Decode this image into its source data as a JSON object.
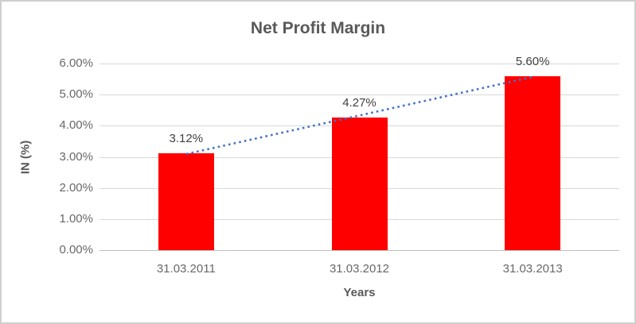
{
  "chart_data": {
    "type": "bar",
    "title": "Net Profit Margin",
    "xlabel": "Years",
    "ylabel": "IN (%)",
    "categories": [
      "31.03.2011",
      "31.03.2012",
      "31.03.2013"
    ],
    "values": [
      3.12,
      4.27,
      5.6
    ],
    "data_labels": [
      "3.12%",
      "4.27%",
      "5.60%"
    ],
    "yticks": [
      {
        "value": 0,
        "label": "0.00%"
      },
      {
        "value": 1,
        "label": "1.00%"
      },
      {
        "value": 2,
        "label": "2.00%"
      },
      {
        "value": 3,
        "label": "3.00%"
      },
      {
        "value": 4,
        "label": "4.00%"
      },
      {
        "value": 5,
        "label": "5.00%"
      },
      {
        "value": 6,
        "label": "6.00%"
      }
    ],
    "ylim": [
      0,
      6
    ],
    "grid": true,
    "legend": "none",
    "bar_color": "#ff0000",
    "gridline_color": "#d9d9d9",
    "axis_line_color": "#bfbfbf",
    "trendline": {
      "type": "linear",
      "style": "dotted",
      "color": "#4472c4"
    }
  }
}
